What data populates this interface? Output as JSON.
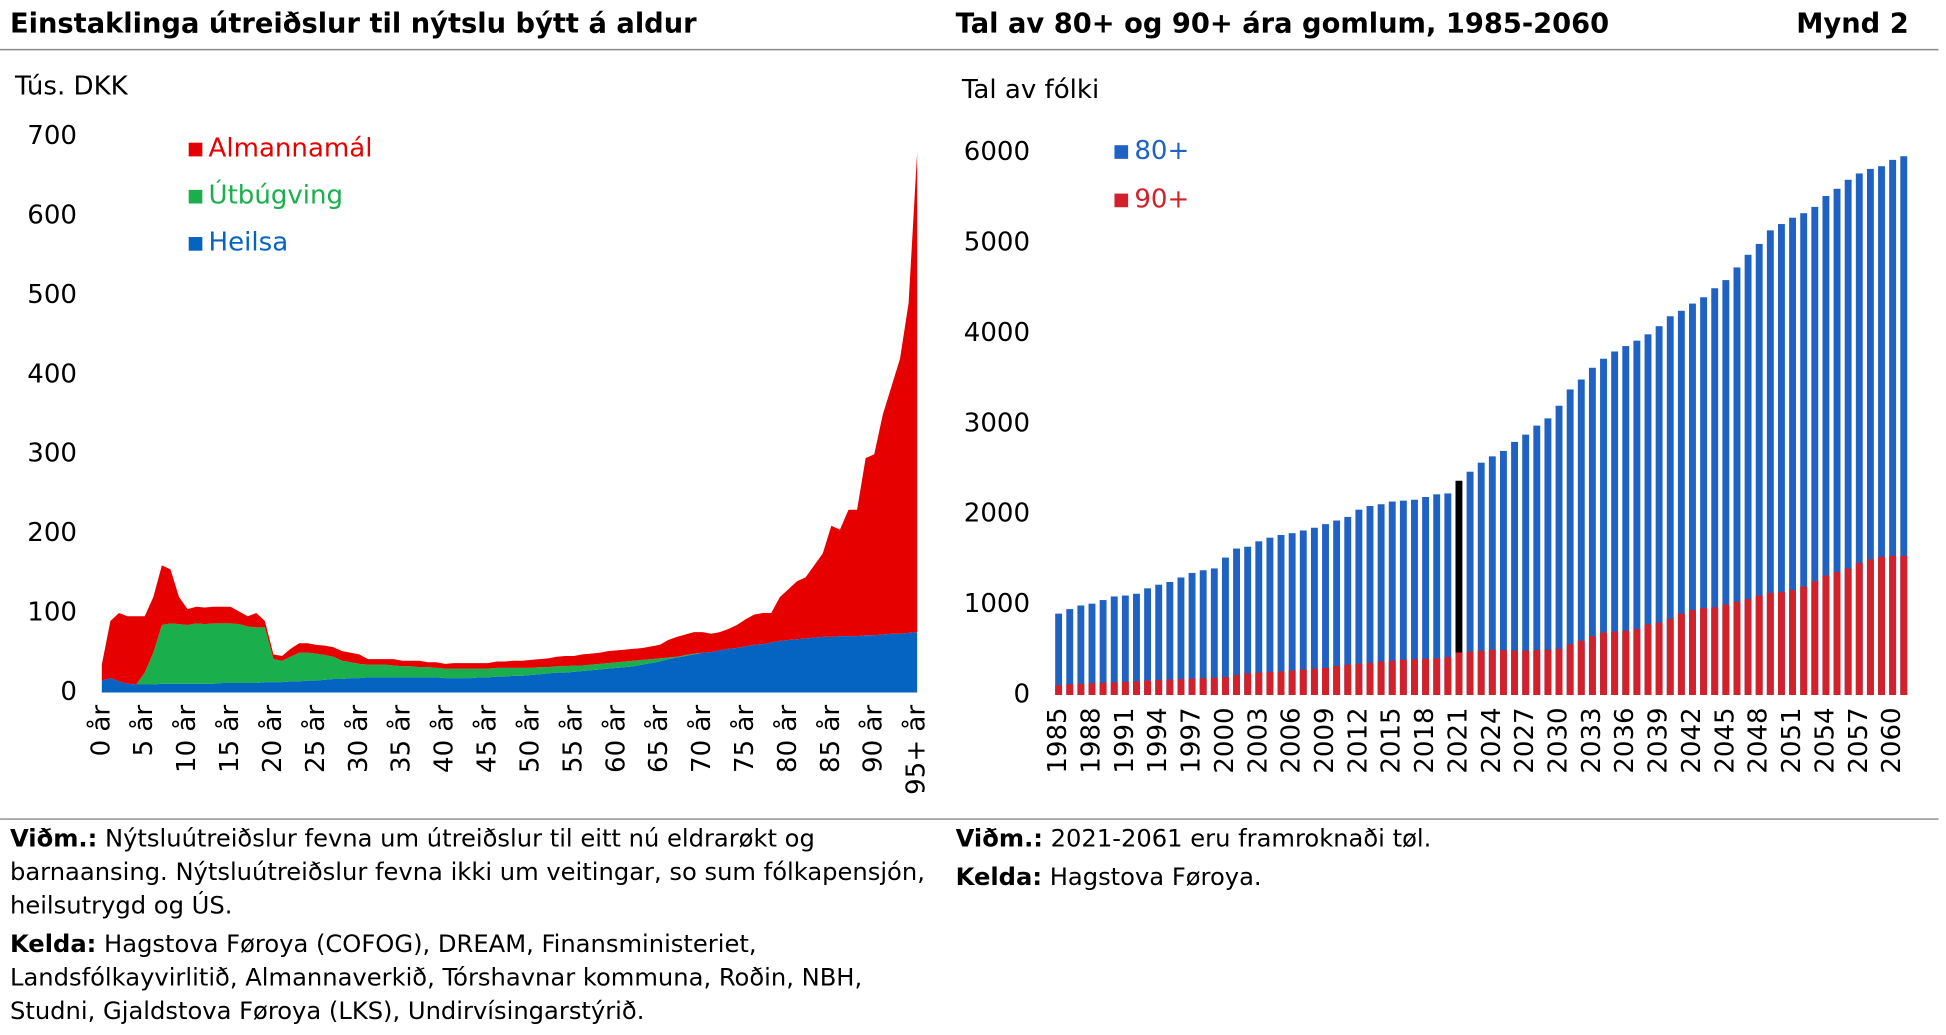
{
  "header": {
    "title_left": "Einstaklinga útreiðslur til nýtslu býtt á aldur",
    "title_right": "Tal av 80+ og 90+ ára gomlum, 1985-2060",
    "figure": "Mynd 2"
  },
  "chart_data": [
    {
      "type": "area",
      "stacked": true,
      "ylabel": "Tús. DKK",
      "ylim": [
        0,
        700
      ],
      "yticks": [
        0,
        100,
        200,
        300,
        400,
        500,
        600,
        700
      ],
      "categories": [
        "0 år",
        null,
        null,
        null,
        null,
        "5 år",
        null,
        null,
        null,
        null,
        "10 år",
        null,
        null,
        null,
        null,
        "15 år",
        null,
        null,
        null,
        null,
        "20 år",
        null,
        null,
        null,
        null,
        "25 år",
        null,
        null,
        null,
        null,
        "30 år",
        null,
        null,
        null,
        null,
        "35 år",
        null,
        null,
        null,
        null,
        "40 år",
        null,
        null,
        null,
        null,
        "45 år",
        null,
        null,
        null,
        null,
        "50 år",
        null,
        null,
        null,
        null,
        "55 år",
        null,
        null,
        null,
        null,
        "60 år",
        null,
        null,
        null,
        null,
        "65 år",
        null,
        null,
        null,
        null,
        "70 år",
        null,
        null,
        null,
        null,
        "75 år",
        null,
        null,
        null,
        null,
        "80 år",
        null,
        null,
        null,
        null,
        "85 år",
        null,
        null,
        null,
        null,
        "90 år",
        null,
        null,
        null,
        null,
        "95+ år"
      ],
      "series": [
        {
          "name": "Heilsa",
          "color": "#0563c1",
          "values": [
            15,
            18,
            14,
            11,
            10,
            10,
            10,
            11,
            11,
            11,
            11,
            11,
            11,
            11,
            12,
            12,
            12,
            12,
            12,
            13,
            13,
            13,
            14,
            14,
            15,
            15,
            16,
            17,
            17,
            18,
            18,
            19,
            19,
            19,
            19,
            19,
            19,
            19,
            19,
            19,
            18,
            18,
            18,
            18,
            19,
            19,
            20,
            20,
            21,
            21,
            22,
            23,
            24,
            25,
            25,
            26,
            27,
            28,
            29,
            30,
            31,
            32,
            33,
            35,
            37,
            39,
            42,
            44,
            46,
            48,
            50,
            51,
            53,
            55,
            56,
            58,
            60,
            61,
            63,
            65,
            66,
            67,
            68,
            69,
            70,
            70,
            71,
            71,
            71,
            72,
            72,
            73,
            74,
            74,
            75,
            76
          ]
        },
        {
          "name": "Útbúgving",
          "color": "#1aaf4c",
          "values": [
            0,
            0,
            0,
            0,
            0,
            15,
            40,
            74,
            76,
            75,
            74,
            76,
            75,
            76,
            75,
            75,
            74,
            71,
            70,
            69,
            29,
            27,
            31,
            36,
            35,
            34,
            31,
            28,
            23,
            20,
            18,
            16,
            16,
            16,
            15,
            14,
            14,
            13,
            13,
            12,
            12,
            12,
            12,
            12,
            11,
            11,
            11,
            11,
            10,
            10,
            9,
            9,
            8,
            8,
            8,
            8,
            7,
            7,
            7,
            7,
            7,
            7,
            7,
            6,
            5,
            4,
            2,
            1,
            1,
            1,
            0,
            0,
            0,
            0,
            0,
            0,
            0,
            0,
            0,
            0,
            0,
            0,
            0,
            0,
            0,
            0,
            0,
            0,
            0,
            0,
            0,
            0,
            0,
            0,
            0,
            0
          ]
        },
        {
          "name": "Almannamál",
          "color": "#e60000",
          "values": [
            20,
            72,
            86,
            85,
            86,
            71,
            70,
            75,
            68,
            34,
            20,
            21,
            21,
            21,
            21,
            21,
            16,
            13,
            18,
            8,
            6,
            6,
            10,
            12,
            12,
            11,
            12,
            12,
            12,
            12,
            12,
            7,
            7,
            7,
            8,
            7,
            7,
            8,
            6,
            7,
            6,
            7,
            7,
            7,
            7,
            7,
            8,
            8,
            9,
            9,
            10,
            10,
            11,
            12,
            13,
            12,
            14,
            14,
            14,
            15,
            15,
            15,
            15,
            15,
            16,
            17,
            22,
            25,
            26,
            27,
            26,
            23,
            23,
            25,
            29,
            34,
            38,
            39,
            37,
            55,
            64,
            73,
            77,
            91,
            105,
            140,
            134,
            159,
            159,
            223,
            228,
            277,
            311,
            346,
            415,
            604
          ]
        }
      ]
    },
    {
      "type": "bar",
      "overlap": true,
      "ylabel": "Tal av fólki",
      "ylim": [
        0,
        6000
      ],
      "yticks": [
        0,
        1000,
        2000,
        3000,
        4000,
        5000,
        6000
      ],
      "highlight_index": 36,
      "highlight_color": "#000000",
      "categories": [
        "1985",
        null,
        null,
        "1988",
        null,
        null,
        "1991",
        null,
        null,
        "1994",
        null,
        null,
        "1997",
        null,
        null,
        "2000",
        null,
        null,
        "2003",
        null,
        null,
        "2006",
        null,
        null,
        "2009",
        null,
        null,
        "2012",
        null,
        null,
        "2015",
        null,
        null,
        "2018",
        null,
        null,
        "2021",
        null,
        null,
        "2024",
        null,
        null,
        "2027",
        null,
        null,
        "2030",
        null,
        null,
        "2033",
        null,
        null,
        "2036",
        null,
        null,
        "2039",
        null,
        null,
        "2042",
        null,
        null,
        "2045",
        null,
        null,
        "2048",
        null,
        null,
        "2051",
        null,
        null,
        "2054",
        null,
        null,
        "2057",
        null,
        null,
        "2060",
        null
      ],
      "series": [
        {
          "name": "80+",
          "color": "#1f62c4",
          "values": [
            900,
            950,
            990,
            1010,
            1050,
            1090,
            1100,
            1120,
            1180,
            1220,
            1250,
            1300,
            1350,
            1380,
            1400,
            1520,
            1620,
            1640,
            1700,
            1740,
            1770,
            1790,
            1820,
            1850,
            1890,
            1930,
            1970,
            2050,
            2090,
            2110,
            2140,
            2150,
            2160,
            2190,
            2220,
            2230,
            2370,
            2470,
            2570,
            2640,
            2700,
            2800,
            2880,
            2980,
            3060,
            3200,
            3380,
            3490,
            3620,
            3720,
            3800,
            3860,
            3920,
            3990,
            4080,
            4190,
            4250,
            4330,
            4400,
            4500,
            4590,
            4730,
            4870,
            4990,
            5140,
            5210,
            5280,
            5330,
            5400,
            5520,
            5600,
            5700,
            5770,
            5820,
            5850,
            5920,
            5960
          ]
        },
        {
          "name": "90+",
          "color": "#d3212b",
          "values": [
            110,
            120,
            125,
            130,
            135,
            140,
            145,
            150,
            160,
            165,
            170,
            175,
            180,
            185,
            190,
            200,
            220,
            240,
            250,
            255,
            260,
            270,
            280,
            290,
            300,
            320,
            335,
            345,
            355,
            370,
            380,
            390,
            395,
            400,
            405,
            420,
            470,
            480,
            490,
            500,
            495,
            490,
            490,
            495,
            500,
            510,
            560,
            600,
            650,
            690,
            700,
            710,
            730,
            780,
            800,
            840,
            900,
            940,
            960,
            970,
            1000,
            1030,
            1060,
            1100,
            1130,
            1140,
            1160,
            1200,
            1260,
            1320,
            1360,
            1400,
            1460,
            1500,
            1530,
            1540,
            1540
          ]
        }
      ]
    }
  ],
  "notes_left": [
    {
      "label": "Viðm.:",
      "text": "Nýtsluútreiðslur fevna um útreiðslur til eitt nú eldrarøkt og barnaansing. Nýtsluútreiðslur fevna ikki um veitingar, so sum fólkapensjón, heilsutrygd og ÚS."
    },
    {
      "label": "Kelda:",
      "text": "Hagstova Føroya (COFOG), DREAM, Finansministeriet, Landsfólkayvirlitið, Almannaverkið, Tórshavnar kommuna, Roðin, NBH, Studni, Gjaldstova Føroya (LKS), Undirvísingarstýrið."
    }
  ],
  "notes_right": [
    {
      "label": "Viðm.:",
      "text": "2021-2061 eru framroknaði tøl."
    },
    {
      "label": "Kelda:",
      "text": "Hagstova Føroya."
    }
  ]
}
